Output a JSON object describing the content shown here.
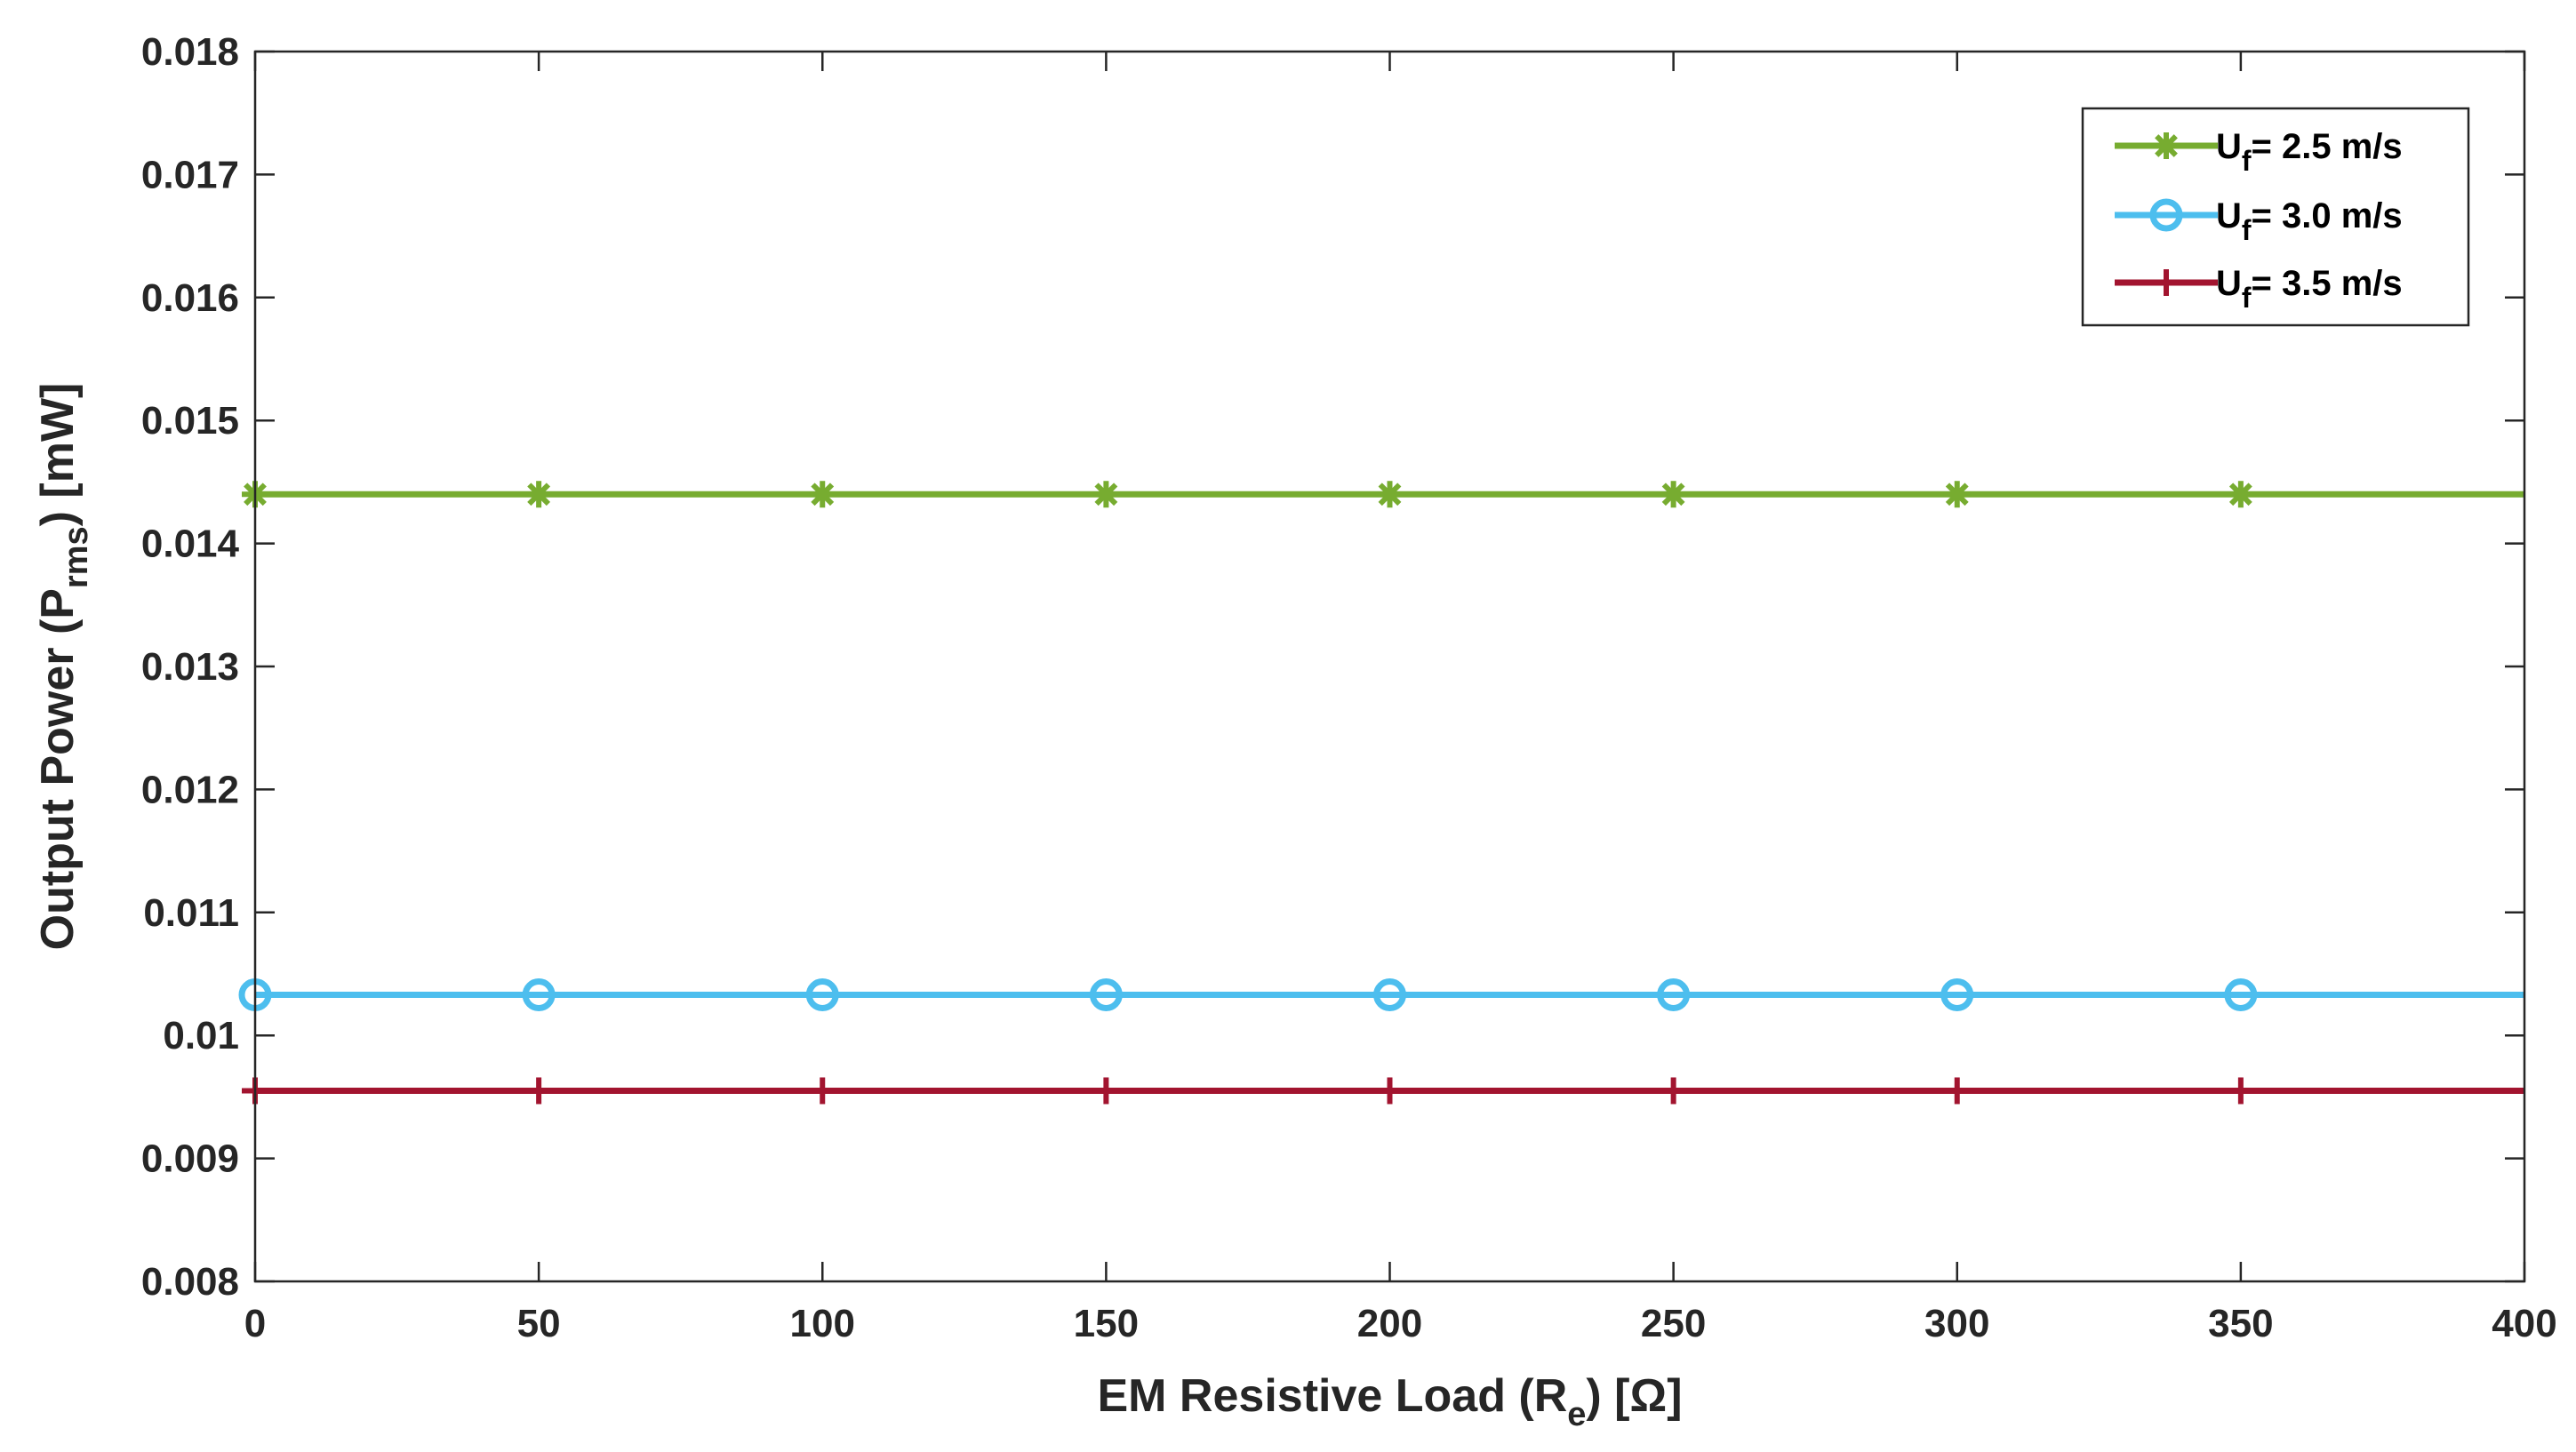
{
  "chart_data": {
    "type": "line",
    "xlabel": {
      "prefix": "EM Resistive Load (R",
      "sub": "e",
      "suffix": ") [Ω]"
    },
    "ylabel": {
      "prefix": "Output Power (P",
      "sub": "rms",
      "suffix": ") [mW]"
    },
    "xlim": [
      0,
      400
    ],
    "ylim": [
      0.008,
      0.018
    ],
    "xticks": [
      0,
      50,
      100,
      150,
      200,
      250,
      300,
      350,
      400
    ],
    "xtick_labels": [
      "0",
      "50",
      "100",
      "150",
      "200",
      "250",
      "300",
      "350",
      "400"
    ],
    "yticks": [
      0.008,
      0.009,
      0.01,
      0.011,
      0.012,
      0.013,
      0.014,
      0.015,
      0.016,
      0.017,
      0.018
    ],
    "ytick_labels": [
      "0.008",
      "0.009",
      "0.01",
      "0.011",
      "0.012",
      "0.013",
      "0.014",
      "0.015",
      "0.016",
      "0.017",
      "0.018"
    ],
    "grid": false,
    "legend_position": "top-right",
    "x": [
      0,
      50,
      100,
      150,
      200,
      250,
      300,
      350,
      400
    ],
    "marker_x": [
      0,
      50,
      100,
      150,
      200,
      250,
      300,
      350
    ],
    "series": [
      {
        "name": "U_f= 2.5 m/s",
        "legend": {
          "base": "U",
          "sub": "f",
          "rest": "= 2.5 m/s"
        },
        "values": [
          0.0144,
          0.0144,
          0.0144,
          0.0144,
          0.0144,
          0.0144,
          0.0144,
          0.0144,
          0.0144
        ],
        "color": "#77AC30",
        "marker": "asterisk"
      },
      {
        "name": "U_f= 3.0 m/s",
        "legend": {
          "base": "U",
          "sub": "f",
          "rest": "= 3.0 m/s"
        },
        "values": [
          0.01033,
          0.01033,
          0.01033,
          0.01033,
          0.01033,
          0.01033,
          0.01033,
          0.01033,
          0.01033
        ],
        "color": "#4DBEEE",
        "marker": "circle"
      },
      {
        "name": "U_f= 3.5 m/s",
        "legend": {
          "base": "U",
          "sub": "f",
          "rest": "= 3.5 m/s"
        },
        "values": [
          0.00955,
          0.00955,
          0.00955,
          0.00955,
          0.00955,
          0.00955,
          0.00955,
          0.00955,
          0.00955
        ],
        "color": "#A2142F",
        "marker": "plus"
      }
    ]
  }
}
